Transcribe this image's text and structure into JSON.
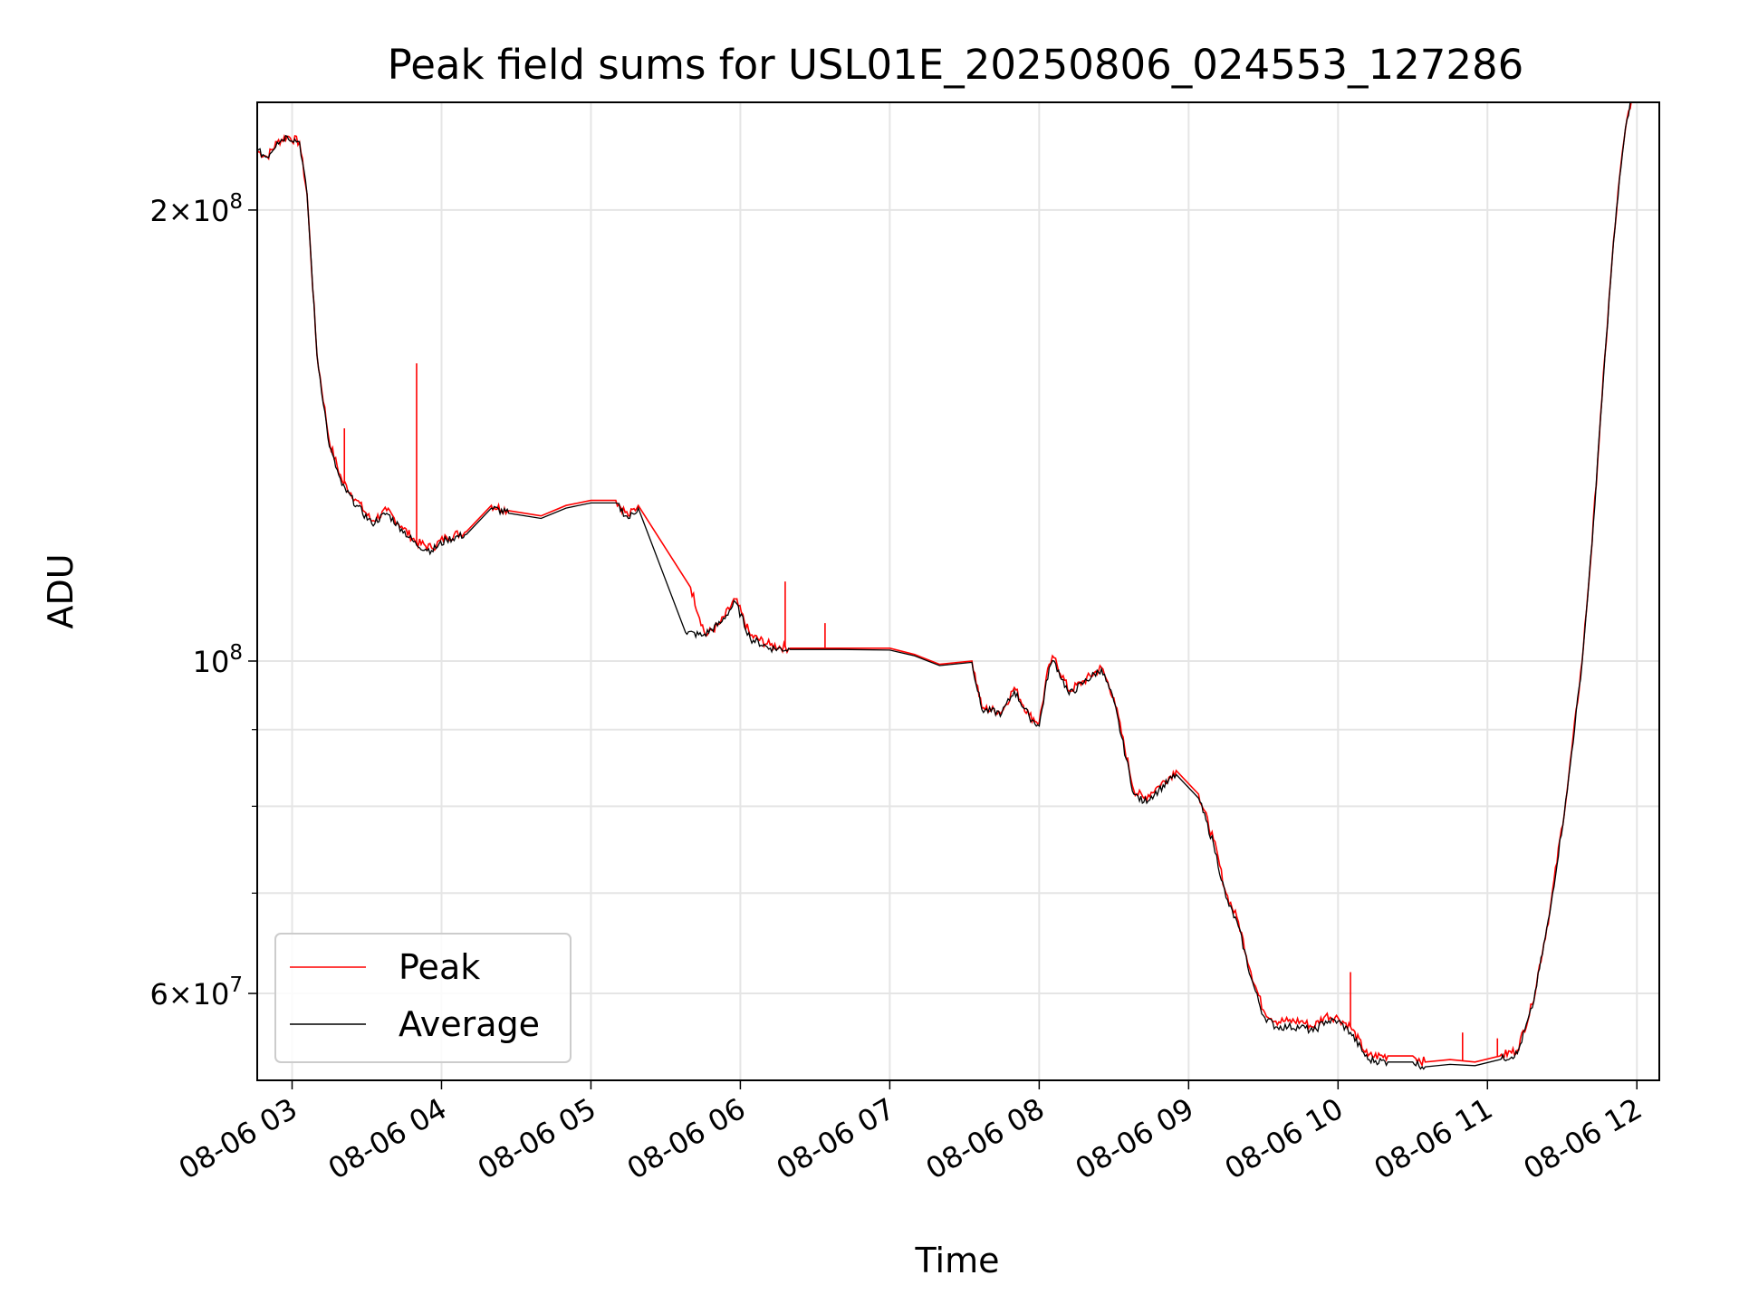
{
  "chart_data": {
    "type": "line",
    "title": "Peak field sums for USL01E_20250806_024553_127286",
    "xlabel": "Time",
    "ylabel": "ADU",
    "y_scale": "log",
    "ylim": [
      52500000,
      236000000
    ],
    "xlim": [
      "08-06 02:46",
      "08-06 12:09"
    ],
    "grid": true,
    "legend_position": "lower-left",
    "x_ticks": [
      "08-06 03",
      "08-06 04",
      "08-06 05",
      "08-06 06",
      "08-06 07",
      "08-06 08",
      "08-06 09",
      "08-06 10",
      "08-06 11",
      "08-06 12"
    ],
    "x_tick_values": [
      "2025-08-06 03:00",
      "2025-08-06 04:00",
      "2025-08-06 05:00",
      "2025-08-06 06:00",
      "2025-08-06 07:00",
      "2025-08-06 08:00",
      "2025-08-06 09:00",
      "2025-08-06 10:00",
      "2025-08-06 11:00",
      "2025-08-06 12:00"
    ],
    "y_major_ticks": [
      {
        "value": 200000000,
        "mantissa": "2",
        "exponent": "8"
      },
      {
        "value": 100000000,
        "mantissa": "",
        "exponent": "8"
      },
      {
        "value": 60000000,
        "mantissa": "6",
        "exponent": "7"
      }
    ],
    "y_minor_ticks": [
      70000000,
      80000000,
      90000000
    ],
    "series": [
      {
        "name": "Peak",
        "color": "#ff0000",
        "x": [
          "2025-08-06 02:46",
          "2025-08-06 02:50",
          "2025-08-06 02:54",
          "2025-08-06 02:58",
          "2025-08-06 03:03",
          "2025-08-06 03:06",
          "2025-08-06 03:10",
          "2025-08-06 03:15",
          "2025-08-06 03:20",
          "2025-08-06 03:26",
          "2025-08-06 03:32",
          "2025-08-06 03:38",
          "2025-08-06 03:44",
          "2025-08-06 03:50",
          "2025-08-06 03:56",
          "2025-08-06 04:02",
          "2025-08-06 04:10",
          "2025-08-06 04:20",
          "2025-08-06 04:27",
          "2025-08-06 04:40",
          "2025-08-06 04:50",
          "2025-08-06 05:00",
          "2025-08-06 05:10",
          "2025-08-06 05:15",
          "2025-08-06 05:19",
          "2025-08-06 05:40",
          "2025-08-06 05:46",
          "2025-08-06 05:52",
          "2025-08-06 05:58",
          "2025-08-06 06:04",
          "2025-08-06 06:12",
          "2025-08-06 06:20",
          "2025-08-06 06:40",
          "2025-08-06 07:00",
          "2025-08-06 07:10",
          "2025-08-06 07:20",
          "2025-08-06 07:33",
          "2025-08-06 07:37",
          "2025-08-06 07:45",
          "2025-08-06 07:50",
          "2025-08-06 07:56",
          "2025-08-06 08:00",
          "2025-08-06 08:04",
          "2025-08-06 08:06",
          "2025-08-06 08:12",
          "2025-08-06 08:18",
          "2025-08-06 08:25",
          "2025-08-06 08:30",
          "2025-08-06 08:38",
          "2025-08-06 08:42",
          "2025-08-06 08:48",
          "2025-08-06 08:55",
          "2025-08-06 09:04",
          "2025-08-06 09:10",
          "2025-08-06 09:15",
          "2025-08-06 09:20",
          "2025-08-06 09:25",
          "2025-08-06 09:30",
          "2025-08-06 09:35",
          "2025-08-06 09:40",
          "2025-08-06 09:45",
          "2025-08-06 09:50",
          "2025-08-06 09:55",
          "2025-08-06 10:00",
          "2025-08-06 10:05",
          "2025-08-06 10:12",
          "2025-08-06 10:20",
          "2025-08-06 10:30",
          "2025-08-06 10:35",
          "2025-08-06 10:45",
          "2025-08-06 10:55",
          "2025-08-06 11:05",
          "2025-08-06 11:12",
          "2025-08-06 11:18",
          "2025-08-06 11:25",
          "2025-08-06 11:32",
          "2025-08-06 11:38",
          "2025-08-06 11:42",
          "2025-08-06 11:46",
          "2025-08-06 11:50",
          "2025-08-06 11:53",
          "2025-08-06 11:56",
          "2025-08-06 11:58"
        ],
        "values": [
          219000000,
          217000000,
          222000000,
          224000000,
          222000000,
          205000000,
          160000000,
          140000000,
          132000000,
          128000000,
          124000000,
          126000000,
          123000000,
          120000000,
          119000000,
          121000000,
          122000000,
          127000000,
          126000000,
          125000000,
          127000000,
          128000000,
          128000000,
          125000000,
          127000000,
          112000000,
          104000000,
          106000000,
          110000000,
          104000000,
          102500000,
          102000000,
          102000000,
          102000000,
          101000000,
          99500000,
          100000000,
          93000000,
          92500000,
          96000000,
          92000000,
          91000000,
          99500000,
          100500000,
          95500000,
          97000000,
          99000000,
          94500000,
          82000000,
          81000000,
          82500000,
          84500000,
          81500000,
          76000000,
          70000000,
          67000000,
          62000000,
          58500000,
          57500000,
          57500000,
          57500000,
          57000000,
          58000000,
          57800000,
          57000000,
          54500000,
          54500000,
          54500000,
          54000000,
          54200000,
          54000000,
          54500000,
          55000000,
          59000000,
          68000000,
          82000000,
          100000000,
          120000000,
          150000000,
          185000000,
          210000000,
          230000000,
          238000000
        ]
      },
      {
        "name": "Average",
        "color": "#000000",
        "x": [
          "2025-08-06 02:46",
          "2025-08-06 02:50",
          "2025-08-06 02:54",
          "2025-08-06 02:58",
          "2025-08-06 03:03",
          "2025-08-06 03:06",
          "2025-08-06 03:10",
          "2025-08-06 03:15",
          "2025-08-06 03:20",
          "2025-08-06 03:26",
          "2025-08-06 03:32",
          "2025-08-06 03:38",
          "2025-08-06 03:44",
          "2025-08-06 03:50",
          "2025-08-06 03:56",
          "2025-08-06 04:02",
          "2025-08-06 04:10",
          "2025-08-06 04:20",
          "2025-08-06 04:27",
          "2025-08-06 04:40",
          "2025-08-06 04:50",
          "2025-08-06 05:00",
          "2025-08-06 05:10",
          "2025-08-06 05:15",
          "2025-08-06 05:19",
          "2025-08-06 05:38",
          "2025-08-06 05:45",
          "2025-08-06 05:52",
          "2025-08-06 05:58",
          "2025-08-06 06:04",
          "2025-08-06 06:12",
          "2025-08-06 06:20",
          "2025-08-06 06:40",
          "2025-08-06 07:00",
          "2025-08-06 07:10",
          "2025-08-06 07:20",
          "2025-08-06 07:33",
          "2025-08-06 07:37",
          "2025-08-06 07:45",
          "2025-08-06 07:50",
          "2025-08-06 07:56",
          "2025-08-06 08:00",
          "2025-08-06 08:04",
          "2025-08-06 08:06",
          "2025-08-06 08:12",
          "2025-08-06 08:18",
          "2025-08-06 08:25",
          "2025-08-06 08:30",
          "2025-08-06 08:38",
          "2025-08-06 08:42",
          "2025-08-06 08:48",
          "2025-08-06 08:55",
          "2025-08-06 09:04",
          "2025-08-06 09:10",
          "2025-08-06 09:15",
          "2025-08-06 09:20",
          "2025-08-06 09:25",
          "2025-08-06 09:30",
          "2025-08-06 09:35",
          "2025-08-06 09:40",
          "2025-08-06 09:45",
          "2025-08-06 09:50",
          "2025-08-06 09:55",
          "2025-08-06 10:00",
          "2025-08-06 10:05",
          "2025-08-06 10:12",
          "2025-08-06 10:20",
          "2025-08-06 10:30",
          "2025-08-06 10:35",
          "2025-08-06 10:45",
          "2025-08-06 10:55",
          "2025-08-06 11:05",
          "2025-08-06 11:12",
          "2025-08-06 11:18",
          "2025-08-06 11:25",
          "2025-08-06 11:32",
          "2025-08-06 11:38",
          "2025-08-06 11:42",
          "2025-08-06 11:46",
          "2025-08-06 11:50",
          "2025-08-06 11:53",
          "2025-08-06 11:56",
          "2025-08-06 11:58"
        ],
        "values": [
          219000000,
          217000000,
          222000000,
          224000000,
          222000000,
          205000000,
          160000000,
          139000000,
          131000000,
          127000000,
          123500000,
          125500000,
          122500000,
          119500000,
          118500000,
          120500000,
          121500000,
          126500000,
          125500000,
          124500000,
          126500000,
          127500000,
          127500000,
          124500000,
          126500000,
          104500000,
          104000000,
          106000000,
          109500000,
          103500000,
          102000000,
          101800000,
          101800000,
          101700000,
          100800000,
          99300000,
          99800000,
          92800000,
          92300000,
          95500000,
          91800000,
          90500000,
          99000000,
          100000000,
          95000000,
          96800000,
          98800000,
          94000000,
          81500000,
          80500000,
          82000000,
          84000000,
          81000000,
          75500000,
          69500000,
          66500000,
          61500000,
          58000000,
          57000000,
          57000000,
          57000000,
          56600000,
          57500000,
          57500000,
          56500000,
          54200000,
          54000000,
          54000000,
          53600000,
          53800000,
          53700000,
          54200000,
          54700000,
          58700000,
          67800000,
          81800000,
          99800000,
          119800000,
          149800000,
          184800000,
          209800000,
          229800000,
          238000000
        ]
      }
    ],
    "spikes": [
      {
        "series": "Peak",
        "x": "2025-08-06 03:21",
        "value": 143000000
      },
      {
        "series": "Peak",
        "x": "2025-08-06 03:50",
        "value": 158000000
      },
      {
        "series": "Peak",
        "x": "2025-08-06 06:18",
        "value": 113000000
      },
      {
        "series": "Peak",
        "x": "2025-08-06 06:34",
        "value": 106000000
      },
      {
        "series": "Peak",
        "x": "2025-08-06 10:05",
        "value": 62000000
      },
      {
        "series": "Peak",
        "x": "2025-08-06 10:50",
        "value": 56500000
      },
      {
        "series": "Peak",
        "x": "2025-08-06 11:04",
        "value": 56000000
      }
    ]
  }
}
